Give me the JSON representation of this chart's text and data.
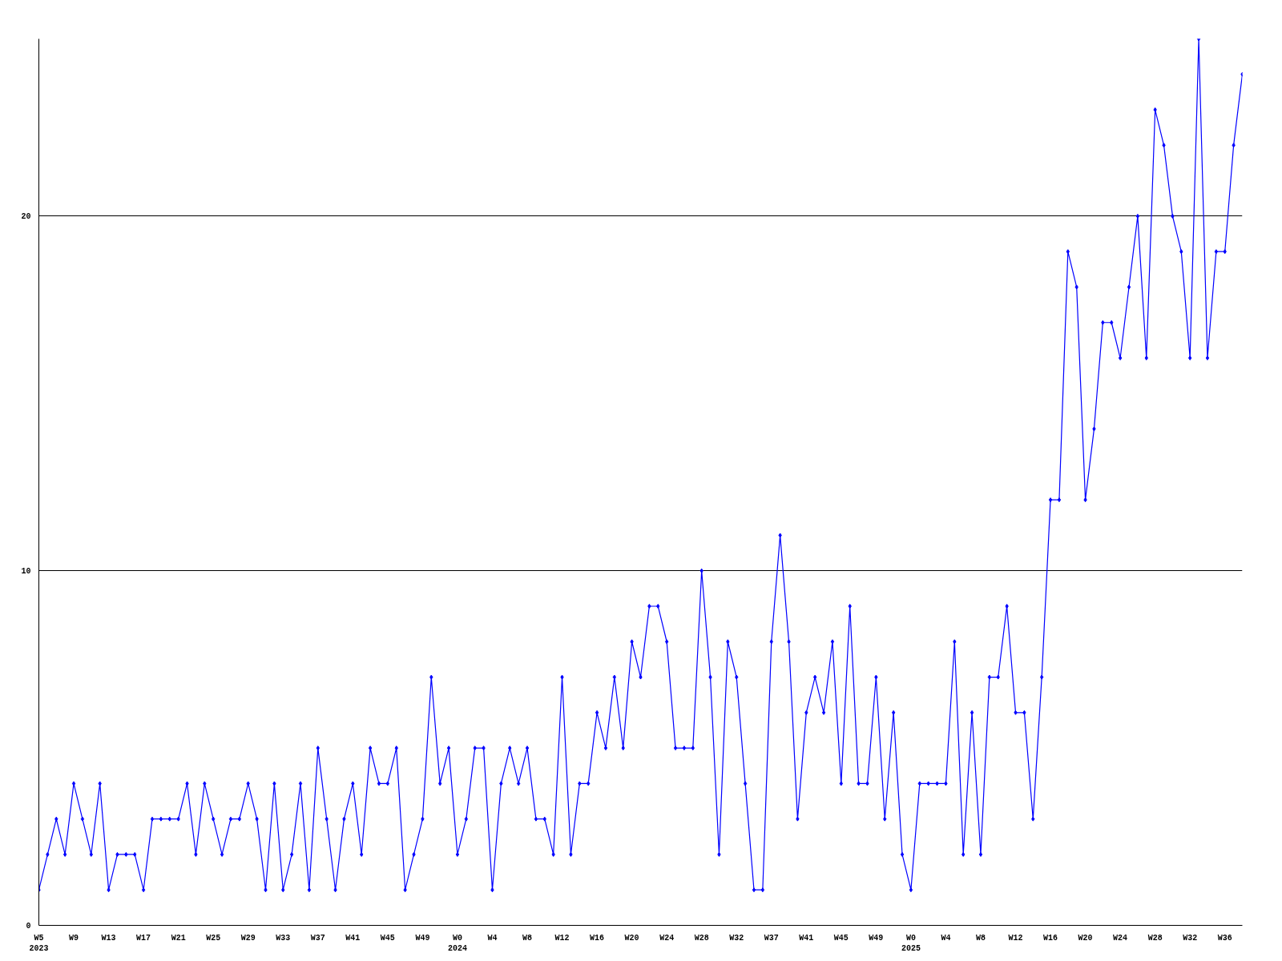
{
  "chart_data": {
    "type": "line",
    "categories": [
      "W5\n2023",
      null,
      null,
      null,
      "W9",
      null,
      null,
      null,
      "W13",
      null,
      null,
      null,
      "W17",
      null,
      null,
      null,
      "W21",
      null,
      null,
      null,
      "W25",
      null,
      null,
      null,
      "W29",
      null,
      null,
      null,
      "W33",
      null,
      null,
      null,
      "W37",
      null,
      null,
      null,
      "W41",
      null,
      null,
      null,
      "W45",
      null,
      null,
      null,
      "W49",
      null,
      null,
      null,
      "W0\n2024",
      null,
      null,
      null,
      "W4",
      null,
      null,
      null,
      "W8",
      null,
      null,
      null,
      "W12",
      null,
      null,
      null,
      "W16",
      null,
      null,
      null,
      "W20",
      null,
      null,
      null,
      "W24",
      null,
      null,
      null,
      "W28",
      null,
      null,
      null,
      "W32",
      null,
      null,
      null,
      "W37",
      null,
      null,
      null,
      "W41",
      null,
      null,
      null,
      "W45",
      null,
      null,
      null,
      "W49",
      null,
      null,
      null,
      "W0\n2025",
      null,
      null,
      null,
      "W4",
      null,
      null,
      null,
      "W8",
      null,
      null,
      null,
      "W12",
      null,
      null,
      null,
      "W16",
      null,
      null,
      null,
      "W20",
      null,
      null,
      null,
      "W24",
      null,
      null,
      null,
      "W28",
      null,
      null,
      null,
      "W32",
      null,
      null,
      null,
      "W36",
      null,
      null
    ],
    "series": [
      {
        "color": "#0000ff",
        "values": [
          1,
          2,
          3,
          2,
          4,
          3,
          2,
          4,
          1,
          2,
          2,
          2,
          1,
          3,
          3,
          3,
          3,
          4,
          2,
          4,
          3,
          2,
          3,
          3,
          4,
          3,
          1,
          4,
          1,
          2,
          4,
          1,
          5,
          3,
          1,
          3,
          4,
          2,
          5,
          4,
          4,
          5,
          1,
          2,
          3,
          7,
          4,
          5,
          2,
          3,
          5,
          5,
          1,
          4,
          5,
          4,
          5,
          3,
          3,
          2,
          7,
          2,
          4,
          4,
          6,
          5,
          7,
          5,
          8,
          7,
          9,
          9,
          8,
          5,
          5,
          5,
          10,
          7,
          2,
          8,
          7,
          4,
          1,
          1,
          8,
          11,
          8,
          3,
          6,
          7,
          6,
          8,
          4,
          9,
          4,
          4,
          7,
          3,
          6,
          2,
          1,
          4,
          4,
          4,
          4,
          8,
          2,
          6,
          2,
          7,
          7,
          9,
          6,
          6,
          3,
          7,
          12,
          12,
          19,
          18,
          12,
          14,
          17,
          17,
          16,
          18,
          20,
          16,
          23,
          22,
          20,
          19,
          16,
          25,
          16,
          19,
          19,
          22,
          24
        ]
      }
    ],
    "ylim": [
      0,
      25
    ],
    "yticks": [
      0,
      10,
      20
    ],
    "grid": "y",
    "marker": "diamond",
    "line_style": "solid"
  }
}
